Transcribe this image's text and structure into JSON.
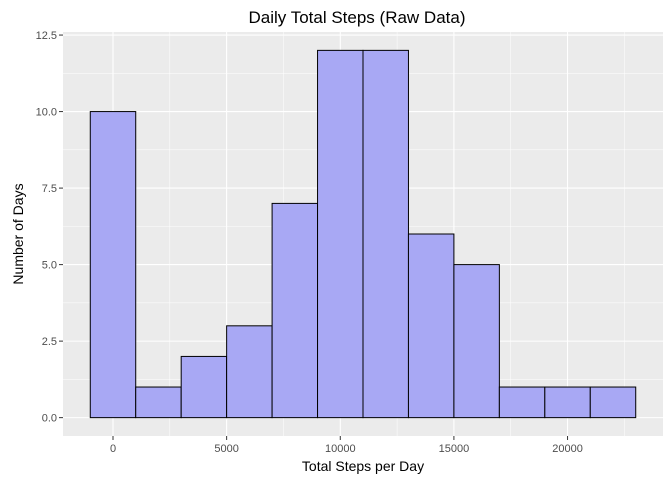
{
  "chart_data": {
    "type": "bar",
    "title": "Daily Total Steps (Raw Data)",
    "xlabel": "Total Steps per Day",
    "ylabel": "Number of Days",
    "bin_width": 2000,
    "bins": [
      {
        "center": 0,
        "count": 10
      },
      {
        "center": 2000,
        "count": 1
      },
      {
        "center": 4000,
        "count": 2
      },
      {
        "center": 6000,
        "count": 3
      },
      {
        "center": 8000,
        "count": 7
      },
      {
        "center": 10000,
        "count": 12
      },
      {
        "center": 12000,
        "count": 12
      },
      {
        "center": 14000,
        "count": 6
      },
      {
        "center": 16000,
        "count": 5
      },
      {
        "center": 18000,
        "count": 1
      },
      {
        "center": 20000,
        "count": 1
      },
      {
        "center": 22000,
        "count": 1
      }
    ],
    "x_ticks": [
      0,
      5000,
      10000,
      15000,
      20000
    ],
    "x_tick_labels": [
      "0",
      "5000",
      "10000",
      "15000",
      "20000"
    ],
    "y_ticks": [
      0,
      2.5,
      5,
      7.5,
      10,
      12.5
    ],
    "y_tick_labels": [
      "0.0",
      "2.5",
      "5.0",
      "7.5",
      "10.0",
      "12.5"
    ],
    "xlim": [
      -2200,
      24200
    ],
    "ylim": [
      -0.6,
      12.6
    ],
    "grid": true,
    "colors": {
      "panel_background": "#ebebeb",
      "bar_fill": "#a8a8f4",
      "bar_outline": "#000000"
    }
  }
}
